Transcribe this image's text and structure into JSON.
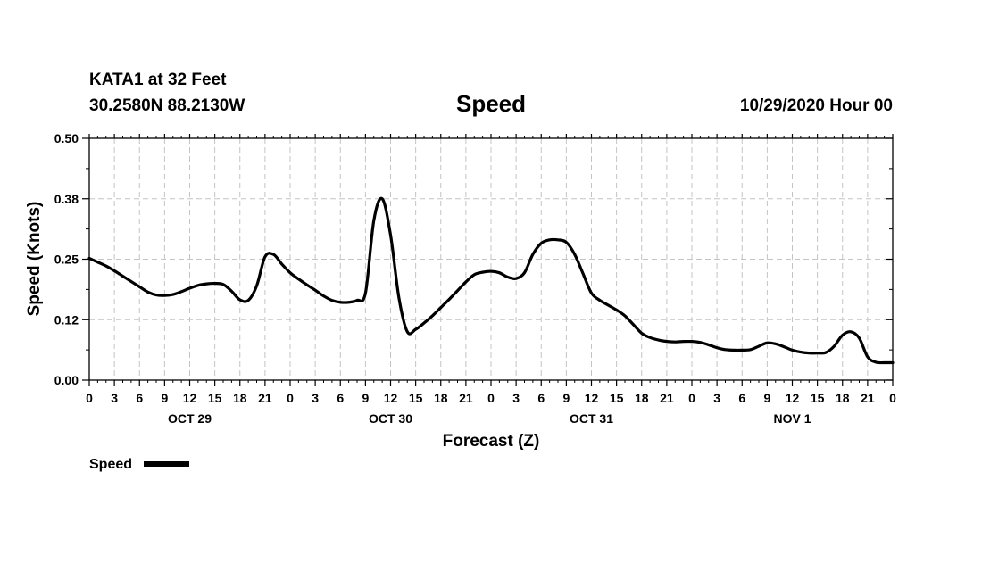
{
  "header": {
    "station": "KATA1 at 32 Feet",
    "coords": "30.2580N 88.2130W",
    "datetime": "10/29/2020 Hour 00"
  },
  "chart_data": {
    "type": "line",
    "title": "Speed",
    "xlabel": "Forecast (Z)",
    "ylabel": "Speed (Knots)",
    "xlim": [
      0,
      96
    ],
    "ylim": [
      0.0,
      0.5
    ],
    "grid": true,
    "x_ticks": [
      "0",
      "3",
      "6",
      "9",
      "12",
      "15",
      "18",
      "21",
      "0",
      "3",
      "6",
      "9",
      "12",
      "15",
      "18",
      "21",
      "0",
      "3",
      "6",
      "9",
      "12",
      "15",
      "18",
      "21",
      "0",
      "3",
      "6",
      "9",
      "12",
      "15",
      "18",
      "21",
      "0"
    ],
    "y_ticks": [
      "0.00",
      "0.12",
      "0.25",
      "0.38",
      "0.50"
    ],
    "day_labels": [
      {
        "label": "OCT 29",
        "hour": 12
      },
      {
        "label": "OCT 30",
        "hour": 36
      },
      {
        "label": "OCT 31",
        "hour": 60
      },
      {
        "label": "NOV 1",
        "hour": 84
      }
    ],
    "legend": {
      "label": "Speed",
      "position": "bottom-left"
    },
    "series": [
      {
        "name": "Speed",
        "x": [
          0,
          1,
          2,
          3,
          4,
          5,
          6,
          7,
          8,
          9,
          10,
          11,
          12,
          13,
          14,
          15,
          16,
          17,
          18,
          19,
          20,
          21,
          22,
          23,
          24,
          25,
          26,
          27,
          28,
          29,
          30,
          31,
          32,
          33,
          34,
          35,
          36,
          37,
          38,
          39,
          40,
          41,
          42,
          43,
          44,
          45,
          46,
          47,
          48,
          49,
          50,
          51,
          52,
          53,
          54,
          55,
          56,
          57,
          58,
          59,
          60,
          61,
          62,
          63,
          64,
          65,
          66,
          67,
          68,
          69,
          70,
          71,
          72,
          73,
          74,
          75,
          76,
          77,
          78,
          79,
          80,
          81,
          82,
          83,
          84,
          85,
          86,
          87,
          88,
          89,
          90,
          91,
          92,
          93,
          94,
          95,
          96
        ],
        "values": [
          0.252,
          0.244,
          0.236,
          0.226,
          0.215,
          0.204,
          0.193,
          0.182,
          0.176,
          0.175,
          0.177,
          0.183,
          0.19,
          0.196,
          0.199,
          0.2,
          0.198,
          0.184,
          0.166,
          0.165,
          0.195,
          0.255,
          0.26,
          0.24,
          0.222,
          0.209,
          0.197,
          0.186,
          0.174,
          0.165,
          0.161,
          0.161,
          0.165,
          0.18,
          0.33,
          0.375,
          0.3,
          0.17,
          0.1,
          0.105,
          0.118,
          0.133,
          0.15,
          0.167,
          0.185,
          0.203,
          0.218,
          0.223,
          0.225,
          0.222,
          0.213,
          0.21,
          0.222,
          0.26,
          0.283,
          0.29,
          0.29,
          0.285,
          0.26,
          0.22,
          0.18,
          0.165,
          0.155,
          0.145,
          0.133,
          0.115,
          0.097,
          0.088,
          0.083,
          0.08,
          0.079,
          0.08,
          0.08,
          0.078,
          0.073,
          0.067,
          0.063,
          0.062,
          0.062,
          0.063,
          0.07,
          0.077,
          0.075,
          0.069,
          0.062,
          0.058,
          0.056,
          0.056,
          0.057,
          0.07,
          0.093,
          0.1,
          0.087,
          0.048,
          0.037,
          0.036,
          0.036
        ]
      }
    ]
  }
}
